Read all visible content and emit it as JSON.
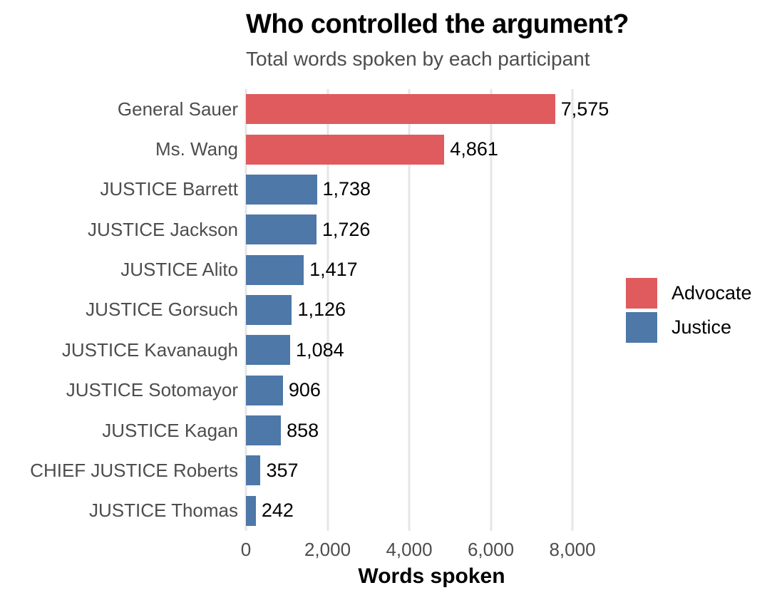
{
  "chart_data": {
    "type": "bar",
    "orientation": "horizontal",
    "title": "Who controlled the argument?",
    "subtitle": "Total words spoken by each participant",
    "xlabel": "Words spoken",
    "ylabel": "",
    "categories": [
      "General Sauer",
      "Ms. Wang",
      "JUSTICE Barrett",
      "JUSTICE Jackson",
      "JUSTICE Alito",
      "JUSTICE Gorsuch",
      "JUSTICE Kavanaugh",
      "JUSTICE Sotomayor",
      "JUSTICE Kagan",
      "CHIEF JUSTICE Roberts",
      "JUSTICE Thomas"
    ],
    "values": [
      7575,
      4861,
      1738,
      1726,
      1417,
      1126,
      1084,
      906,
      858,
      357,
      242
    ],
    "value_labels": [
      "7,575",
      "4,861",
      "1,738",
      "1,726",
      "1,417",
      "1,126",
      "1,084",
      "906",
      "858",
      "357",
      "242"
    ],
    "groups": [
      "Advocate",
      "Advocate",
      "Justice",
      "Justice",
      "Justice",
      "Justice",
      "Justice",
      "Justice",
      "Justice",
      "Justice",
      "Justice"
    ],
    "legend": {
      "position": "right",
      "items": [
        {
          "label": "Advocate",
          "color": "#DF5B5E"
        },
        {
          "label": "Justice",
          "color": "#4D78A8"
        }
      ]
    },
    "x_ticks": [
      {
        "value": 0,
        "label": "0"
      },
      {
        "value": 2000,
        "label": "2,000"
      },
      {
        "value": 4000,
        "label": "4,000"
      },
      {
        "value": 6000,
        "label": "6,000"
      },
      {
        "value": 8000,
        "label": "8,000"
      }
    ],
    "xlim": [
      0,
      9100
    ],
    "grid": "vertical-major-only",
    "colors": {
      "background": "#FFFFFF",
      "gridline": "#E6E6E6",
      "axis_text": "#4D4D4D",
      "title_text": "#000000",
      "value_text": "#000000"
    }
  }
}
